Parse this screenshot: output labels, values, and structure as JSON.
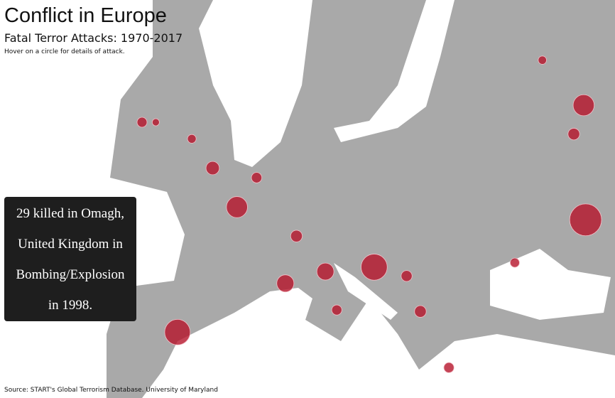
{
  "header": {
    "title": "Conflict in Europe",
    "subtitle": "Fatal Terror Attacks: 1970-2017",
    "hint": "Hover on a circle for details of attack."
  },
  "tooltip": "29 killed in Omagh, United Kingdom in Bombing/Explosion in 1998.",
  "source": "Source: START's Global Terrorism Database. University of Maryland",
  "circle_color": "#b5142b",
  "attacks": [
    {
      "lat": 54.6,
      "lon": -7.3,
      "killed": 29
    },
    {
      "lat": 54.6,
      "lon": -5.9,
      "killed": 15
    },
    {
      "lat": 40.4,
      "lon": -3.7,
      "killed": 191
    },
    {
      "lat": 48.86,
      "lon": 2.35,
      "killed": 130
    },
    {
      "lat": 43.7,
      "lon": 7.27,
      "killed": 86
    },
    {
      "lat": 44.5,
      "lon": 11.34,
      "killed": 85
    },
    {
      "lat": 46.9,
      "lon": 8.4,
      "killed": 40
    },
    {
      "lat": 44.8,
      "lon": 16.3,
      "killed": 200
    },
    {
      "lat": 55.75,
      "lon": 37.6,
      "killed": 130
    },
    {
      "lat": 53.8,
      "lon": 36.6,
      "killed": 40
    },
    {
      "lat": 48.0,
      "lon": 37.8,
      "killed": 298
    },
    {
      "lat": 38.0,
      "lon": 23.9,
      "killed": 30
    },
    {
      "lat": 41.9,
      "lon": 12.5,
      "killed": 30
    },
    {
      "lat": 53.48,
      "lon": -2.24,
      "killed": 22
    },
    {
      "lat": 51.5,
      "lon": -0.12,
      "killed": 52
    },
    {
      "lat": 50.85,
      "lon": 4.35,
      "killed": 32
    },
    {
      "lat": 58.8,
      "lon": 33.4,
      "killed": 20
    },
    {
      "lat": 45.1,
      "lon": 30.6,
      "killed": 25
    },
    {
      "lat": 44.2,
      "lon": 19.6,
      "killed": 35
    },
    {
      "lat": 41.8,
      "lon": 21.0,
      "killed": 40
    }
  ]
}
